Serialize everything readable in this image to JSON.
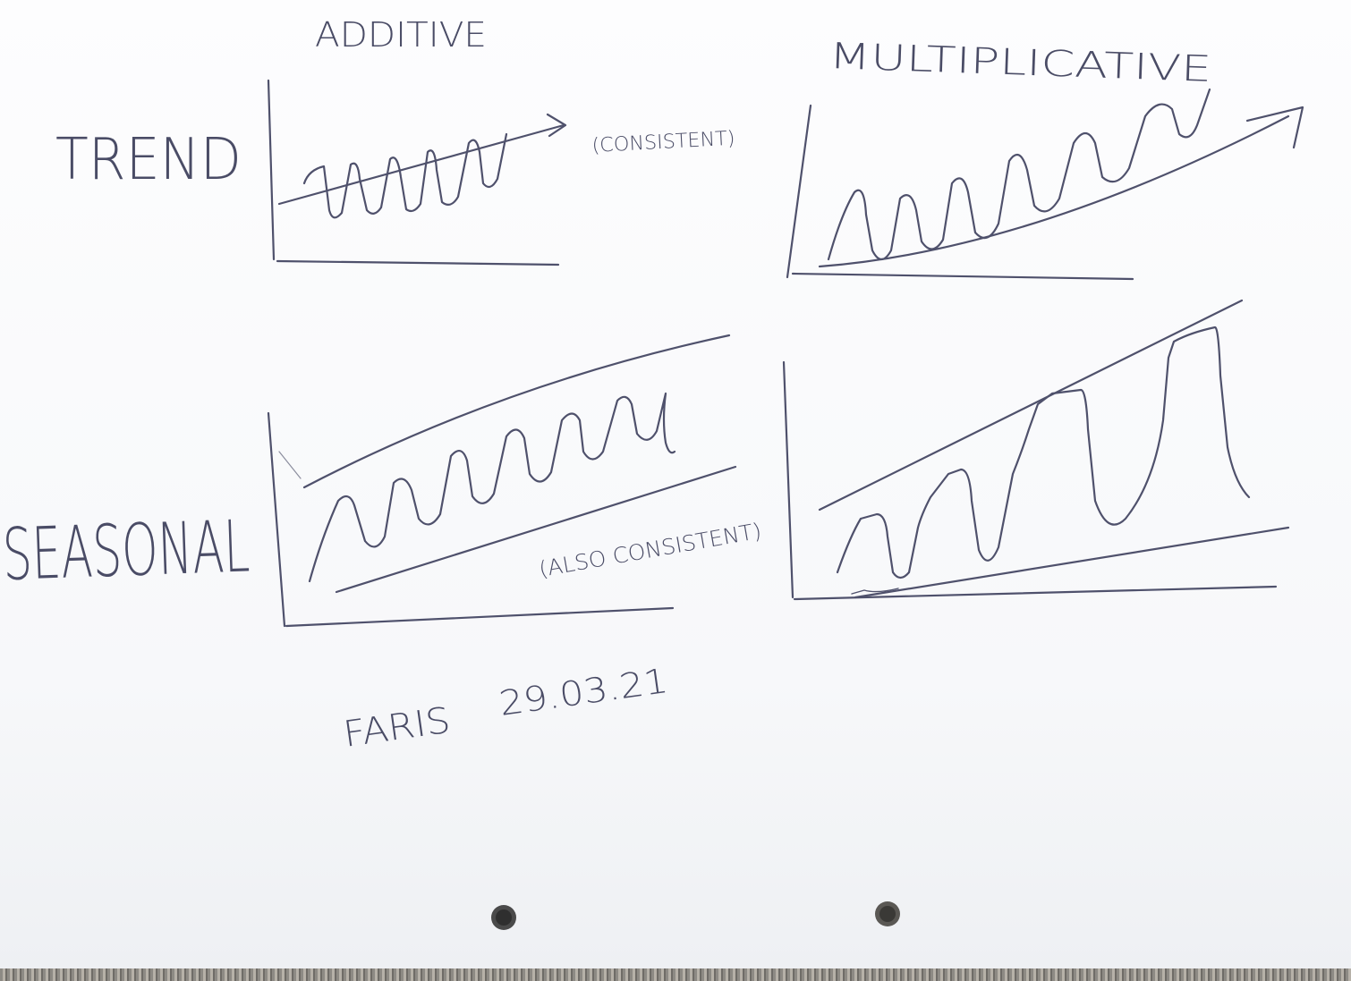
{
  "headings": {
    "additive": "ADDITIVE",
    "multiplicative": "MULTIPLICATIVE"
  },
  "rows": {
    "trend": "TREND",
    "seasonal": "SEASONAL"
  },
  "notes": {
    "trend_note": "(CONSISTENT)",
    "seasonal_note": "(ALSO CONSISTENT)"
  },
  "signature": {
    "name": "FARIS",
    "date": "29.03.21"
  },
  "colors": {
    "ink": "#4f516c",
    "paper": "#fdfdfe"
  }
}
